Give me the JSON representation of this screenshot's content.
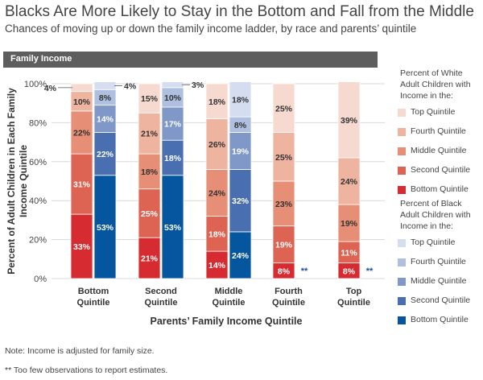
{
  "title": "Blacks Are More Likely to Stay in the Bottom and Fall from the Middle",
  "subtitle": "Chances of moving up or down the family income ladder, by race and parents’ quintile",
  "banner": "Family Income",
  "legend": {
    "white_title": [
      "Percent of White",
      "Adult Children with",
      "Income in the:"
    ],
    "black_title": [
      "Percent of Black",
      "Adult Children with",
      "Income in the:"
    ],
    "white_items": [
      {
        "label": "Top Quintile",
        "color": "#f6d9cf"
      },
      {
        "label": "Fourth Quintile",
        "color": "#efb49f"
      },
      {
        "label": "Middle Quintile",
        "color": "#e78e76"
      },
      {
        "label": "Second Quintile",
        "color": "#dd6353"
      },
      {
        "label": "Bottom Quintile",
        "color": "#d62b31"
      }
    ],
    "black_items": [
      {
        "label": "Top Quintile",
        "color": "#d5ddf0"
      },
      {
        "label": "Fourth Quintile",
        "color": "#aebfe0"
      },
      {
        "label": "Middle Quintile",
        "color": "#7f98c8"
      },
      {
        "label": "Second Quintile",
        "color": "#4a6fb0"
      },
      {
        "label": "Bottom Quintile",
        "color": "#06559f"
      }
    ]
  },
  "notes": {
    "note1": "Note: Income is adjusted for family size.",
    "note2_stars": "**",
    "note2_text": "Too few observations to report estimates."
  },
  "chart_data": {
    "type": "bar",
    "stacked": true,
    "ylabel_line1": "Percent of  Adult Children in Each Family",
    "ylabel_line2": "Income  Quintile",
    "xlabel": "Parents’ Family Income Quintile",
    "ylim": [
      0,
      100
    ],
    "yticks": [
      "0%",
      "20%",
      "40%",
      "60%",
      "80%",
      "100%"
    ],
    "categories": [
      [
        "Bottom",
        "Quintile"
      ],
      [
        "Second",
        "Quintile"
      ],
      [
        "Middle",
        "Quintile"
      ],
      [
        "Fourth",
        "Quintile"
      ],
      [
        "Top",
        "Quintile"
      ]
    ],
    "stack_order": [
      "Bottom Quintile",
      "Second Quintile",
      "Middle Quintile",
      "Fourth Quintile",
      "Top Quintile"
    ],
    "white": [
      [
        33,
        31,
        22,
        10,
        4
      ],
      [
        21,
        25,
        18,
        21,
        15
      ],
      [
        14,
        18,
        24,
        26,
        18
      ],
      [
        8,
        19,
        23,
        25,
        25
      ],
      [
        8,
        11,
        19,
        24,
        39
      ]
    ],
    "black": [
      [
        53,
        22,
        14,
        8,
        4
      ],
      [
        53,
        18,
        17,
        10,
        3
      ],
      [
        24,
        32,
        19,
        8,
        18
      ],
      null,
      null
    ],
    "insufficient_marker": "**"
  }
}
